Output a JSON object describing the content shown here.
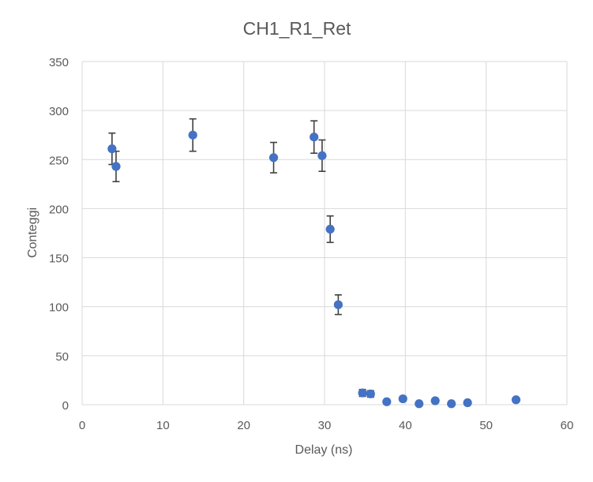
{
  "chart_data": {
    "type": "scatter",
    "title": "CH1_R1_Ret",
    "xlabel": "Delay (ns)",
    "ylabel": "Conteggi",
    "xlim": [
      0,
      60
    ],
    "ylim": [
      0,
      350
    ],
    "xticks": [
      0,
      10,
      20,
      30,
      40,
      50,
      60
    ],
    "yticks": [
      0,
      50,
      100,
      150,
      200,
      250,
      300,
      350
    ],
    "grid": true,
    "legend": "none",
    "marker_color": "#4472C4",
    "errorbar_color": "#404040",
    "points": [
      {
        "x": 3.7,
        "y": 261,
        "err": 16
      },
      {
        "x": 4.2,
        "y": 243,
        "err": 15.5
      },
      {
        "x": 13.7,
        "y": 275,
        "err": 16.5
      },
      {
        "x": 23.7,
        "y": 252,
        "err": 15.5
      },
      {
        "x": 28.7,
        "y": 273,
        "err": 16.5
      },
      {
        "x": 29.7,
        "y": 254,
        "err": 16
      },
      {
        "x": 30.7,
        "y": 179,
        "err": 13.5
      },
      {
        "x": 31.7,
        "y": 102,
        "err": 10
      },
      {
        "x": 34.7,
        "y": 12,
        "err": 3.5
      },
      {
        "x": 35.7,
        "y": 11,
        "err": 3.3
      },
      {
        "x": 37.7,
        "y": 3,
        "err": 1.7
      },
      {
        "x": 39.7,
        "y": 6,
        "err": 2.4
      },
      {
        "x": 41.7,
        "y": 1,
        "err": 1
      },
      {
        "x": 43.7,
        "y": 4,
        "err": 2
      },
      {
        "x": 45.7,
        "y": 1,
        "err": 1
      },
      {
        "x": 47.7,
        "y": 2,
        "err": 1.4
      },
      {
        "x": 53.7,
        "y": 5,
        "err": 2.2
      }
    ]
  }
}
